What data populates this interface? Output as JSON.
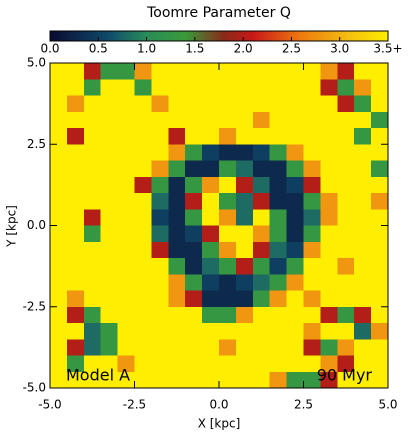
{
  "chart_data": {
    "type": "heatmap",
    "colorbar_title": "Toomre Parameter Q",
    "xlabel": "X [kpc]",
    "ylabel": "Y [kpc]",
    "annotations": [
      "Model A",
      "90 Myr"
    ],
    "xlim": [
      -5,
      5
    ],
    "ylim": [
      -5,
      5
    ],
    "xticks": [
      {
        "value": -5,
        "label": "-5.0"
      },
      {
        "value": -2.5,
        "label": "-2.5"
      },
      {
        "value": 0,
        "label": "0.0"
      },
      {
        "value": 2.5,
        "label": "2.5"
      },
      {
        "value": 5,
        "label": "5.0"
      }
    ],
    "yticks": [
      {
        "value": -5,
        "label": "-5.0"
      },
      {
        "value": -2.5,
        "label": "-2.5"
      },
      {
        "value": 0,
        "label": "0.0"
      },
      {
        "value": 2.5,
        "label": "2.5"
      },
      {
        "value": 5,
        "label": "5.0"
      }
    ],
    "zlim": [
      0,
      3.5
    ],
    "zticks": [
      {
        "value": 0,
        "label": "0.0"
      },
      0.5,
      {
        "value": 1,
        "label": "1.0"
      },
      1.5,
      {
        "value": 2,
        "label": "2.0"
      },
      2.5,
      {
        "value": 3,
        "label": "3.0"
      },
      {
        "value": 3.5,
        "label": "3.5+"
      }
    ],
    "colorscale": [
      [
        0,
        "#0a0a30"
      ],
      [
        0.6,
        "#0f4a6a"
      ],
      [
        1.0,
        "#2a8c5a"
      ],
      [
        1.4,
        "#3a9a3a"
      ],
      [
        1.8,
        "#8a2a1a"
      ],
      [
        2.1,
        "#c81818"
      ],
      [
        2.6,
        "#ee7a10"
      ],
      [
        3.1,
        "#f5c010"
      ],
      [
        3.5,
        "#ffee00"
      ]
    ],
    "x": [
      -4.75,
      -4.25,
      -3.75,
      -3.25,
      -2.75,
      -2.25,
      -1.75,
      -1.25,
      -0.75,
      -0.25,
      0.25,
      0.75,
      1.25,
      1.75,
      2.25,
      2.75,
      3.25,
      3.75,
      4.25,
      4.75
    ],
    "y": [
      4.75,
      4.25,
      3.75,
      3.25,
      2.75,
      2.25,
      1.75,
      1.25,
      0.75,
      0.25,
      -0.25,
      -0.75,
      -1.25,
      -1.75,
      -2.25,
      -2.75,
      -3.25,
      -3.75,
      -4.25,
      -4.75
    ],
    "z": [
      [
        3.5,
        3.5,
        2.0,
        1.3,
        1.3,
        2.8,
        3.5,
        3.5,
        3.5,
        3.5,
        3.5,
        3.5,
        3.5,
        3.5,
        3.5,
        3.5,
        2.8,
        2.0,
        3.5,
        3.5
      ],
      [
        3.5,
        3.5,
        1.3,
        3.5,
        3.5,
        1.3,
        3.5,
        3.5,
        3.5,
        3.5,
        3.5,
        3.5,
        3.5,
        3.5,
        3.5,
        3.5,
        2.0,
        1.3,
        2.8,
        3.5
      ],
      [
        3.5,
        2.8,
        3.5,
        3.5,
        3.5,
        3.5,
        2.8,
        3.5,
        3.5,
        3.5,
        3.5,
        3.5,
        3.5,
        3.5,
        3.5,
        3.5,
        3.5,
        2.0,
        1.3,
        3.5
      ],
      [
        3.5,
        3.5,
        3.5,
        3.5,
        3.5,
        3.5,
        3.5,
        3.5,
        3.5,
        3.5,
        3.5,
        3.5,
        2.8,
        3.5,
        3.5,
        3.5,
        3.5,
        3.5,
        3.5,
        1.3
      ],
      [
        3.5,
        2.0,
        3.5,
        3.5,
        3.5,
        3.5,
        3.5,
        2.0,
        3.5,
        3.5,
        2.8,
        3.5,
        3.5,
        3.5,
        3.5,
        3.5,
        3.5,
        3.5,
        1.3,
        3.5
      ],
      [
        3.5,
        3.5,
        3.5,
        3.5,
        3.5,
        3.5,
        3.5,
        2.8,
        1.3,
        0.5,
        0.3,
        0.3,
        0.5,
        1.3,
        2.8,
        3.5,
        3.5,
        3.5,
        3.5,
        3.5
      ],
      [
        3.5,
        3.5,
        3.5,
        3.5,
        3.5,
        3.5,
        2.8,
        1.3,
        0.3,
        0.3,
        1.3,
        0.8,
        0.3,
        0.3,
        1.3,
        2.8,
        3.5,
        3.5,
        3.5,
        1.3
      ],
      [
        3.5,
        3.5,
        3.5,
        3.5,
        3.5,
        2.0,
        1.3,
        0.3,
        1.3,
        2.8,
        3.5,
        2.0,
        0.8,
        0.3,
        0.5,
        2.0,
        3.5,
        3.5,
        3.5,
        3.5
      ],
      [
        3.5,
        3.5,
        3.5,
        3.5,
        3.5,
        3.5,
        0.8,
        0.3,
        2.0,
        3.5,
        1.3,
        0.8,
        2.0,
        0.3,
        0.3,
        1.3,
        2.8,
        3.5,
        3.5,
        2.8
      ],
      [
        3.5,
        3.5,
        2.0,
        3.5,
        3.5,
        3.5,
        0.5,
        0.3,
        1.3,
        3.5,
        2.8,
        0.8,
        3.5,
        1.3,
        0.3,
        0.8,
        2.8,
        3.5,
        3.5,
        3.5
      ],
      [
        3.5,
        3.5,
        1.3,
        3.5,
        3.5,
        3.5,
        0.8,
        0.3,
        0.5,
        2.0,
        3.5,
        3.5,
        2.8,
        1.3,
        0.3,
        1.3,
        3.5,
        3.5,
        3.5,
        3.5
      ],
      [
        3.5,
        3.5,
        3.5,
        3.5,
        3.5,
        3.5,
        2.0,
        0.3,
        0.3,
        1.3,
        2.8,
        3.5,
        2.0,
        0.8,
        0.5,
        2.8,
        3.5,
        3.5,
        3.5,
        3.5
      ],
      [
        3.5,
        3.5,
        3.5,
        3.5,
        3.5,
        3.5,
        3.5,
        1.3,
        0.3,
        0.8,
        1.3,
        2.0,
        1.3,
        0.5,
        1.3,
        3.5,
        3.5,
        2.8,
        3.5,
        3.5
      ],
      [
        3.5,
        3.5,
        3.5,
        3.5,
        3.5,
        3.5,
        3.5,
        2.8,
        1.3,
        0.5,
        0.3,
        0.5,
        0.8,
        1.3,
        2.8,
        3.5,
        3.5,
        3.5,
        3.5,
        3.5
      ],
      [
        3.5,
        2.8,
        3.5,
        3.5,
        3.5,
        3.5,
        3.5,
        2.8,
        2.0,
        0.3,
        0.3,
        0.3,
        1.3,
        2.8,
        3.5,
        2.8,
        3.5,
        3.5,
        3.5,
        3.5
      ],
      [
        3.5,
        2.0,
        1.3,
        3.5,
        3.5,
        3.5,
        3.5,
        3.5,
        3.5,
        1.3,
        1.3,
        2.8,
        3.5,
        3.5,
        3.5,
        3.5,
        2.0,
        1.3,
        2.0,
        3.5
      ],
      [
        3.5,
        3.5,
        0.8,
        1.3,
        3.5,
        3.5,
        3.5,
        3.5,
        3.5,
        3.5,
        3.5,
        3.5,
        3.5,
        3.5,
        3.5,
        2.8,
        3.5,
        3.5,
        0.8,
        2.8
      ],
      [
        3.5,
        2.0,
        0.8,
        1.3,
        3.5,
        3.5,
        3.5,
        3.5,
        3.5,
        3.5,
        2.8,
        3.5,
        3.5,
        3.5,
        3.5,
        2.0,
        1.3,
        2.8,
        3.5,
        3.5
      ],
      [
        3.5,
        1.3,
        3.5,
        3.5,
        2.8,
        3.5,
        3.5,
        3.5,
        3.5,
        3.5,
        3.5,
        3.5,
        3.5,
        3.5,
        3.5,
        3.5,
        2.8,
        2.0,
        3.5,
        3.5
      ],
      [
        3.5,
        3.5,
        3.5,
        3.5,
        3.5,
        3.5,
        3.5,
        3.5,
        3.5,
        3.5,
        3.5,
        3.5,
        3.5,
        2.8,
        1.3,
        1.3,
        2.0,
        3.5,
        3.5,
        3.5
      ]
    ]
  }
}
